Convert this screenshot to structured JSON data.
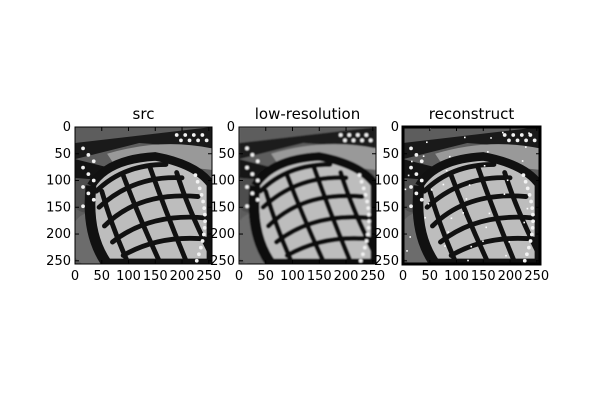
{
  "chart_data": [
    {
      "type": "image",
      "title": "src",
      "xlim": [
        0,
        256
      ],
      "ylim": [
        256,
        0
      ],
      "xticks": [
        0,
        50,
        100,
        150,
        200,
        250
      ],
      "yticks": [
        0,
        50,
        100,
        150,
        200,
        250
      ],
      "colormap": "gray",
      "content": "monarch butterfly wing",
      "blur": 0,
      "edge_artifacts": false
    },
    {
      "type": "image",
      "title": "low-resolution",
      "xlim": [
        0,
        256
      ],
      "ylim": [
        256,
        0
      ],
      "xticks": [
        0,
        50,
        100,
        150,
        200,
        250
      ],
      "yticks": [
        0,
        50,
        100,
        150,
        200,
        250
      ],
      "colormap": "gray",
      "content": "monarch butterfly wing",
      "blur": 1.3,
      "edge_artifacts": false
    },
    {
      "type": "image",
      "title": "reconstruct",
      "xlim": [
        0,
        256
      ],
      "ylim": [
        256,
        0
      ],
      "xticks": [
        0,
        50,
        100,
        150,
        200,
        250
      ],
      "yticks": [
        0,
        50,
        100,
        150,
        200,
        250
      ],
      "colormap": "gray",
      "content": "monarch butterfly wing",
      "blur": 0,
      "edge_artifacts": true
    }
  ],
  "colors": {
    "axis": "#000000",
    "background": "#ffffff"
  }
}
